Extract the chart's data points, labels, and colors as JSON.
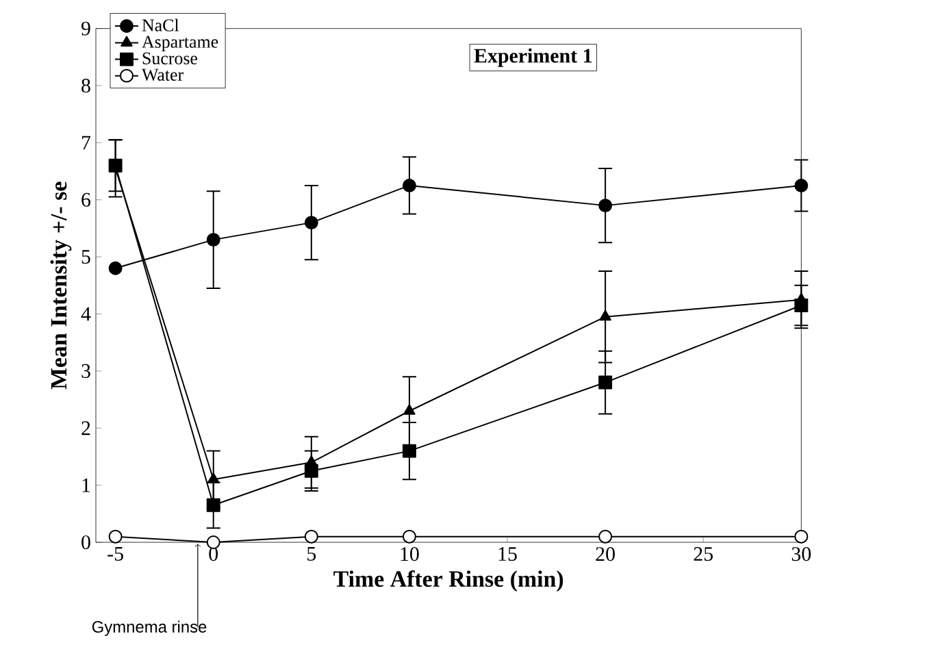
{
  "chart_data": {
    "type": "line",
    "title": "Experiment 1",
    "xlabel": "Time After Rinse (min)",
    "ylabel": "Mean Intensity +/- se",
    "x": [
      -5,
      0,
      5,
      10,
      20,
      30
    ],
    "series": [
      {
        "name": "NaCl",
        "color": "#000000",
        "marker": "circle",
        "values": [
          4.8,
          5.3,
          5.6,
          6.25,
          5.9,
          6.25
        ],
        "errors": [
          null,
          0.85,
          0.65,
          0.5,
          0.65,
          0.45
        ]
      },
      {
        "name": "Aspartame",
        "color": "#000000",
        "marker": "triangle",
        "values": [
          6.55,
          1.1,
          1.4,
          2.3,
          3.95,
          4.25
        ],
        "errors": [
          0.5,
          0.5,
          0.45,
          0.6,
          0.8,
          0.5
        ]
      },
      {
        "name": "Sucrose",
        "color": "#000000",
        "marker": "square",
        "values": [
          6.6,
          0.65,
          1.25,
          1.6,
          2.8,
          4.15
        ],
        "errors": [
          0.45,
          0.4,
          0.35,
          0.5,
          0.55,
          0.35
        ]
      },
      {
        "name": "Water",
        "color": "#ffffff",
        "marker": "circle",
        "values": [
          0.1,
          0,
          0.1,
          0.1,
          0.1,
          0.1
        ]
      }
    ],
    "xlim": [
      -6,
      30
    ],
    "xticks": [
      -5,
      0,
      5,
      10,
      15,
      20,
      25,
      30
    ],
    "ylim": [
      0,
      9
    ],
    "yticks": [
      0,
      1,
      2,
      3,
      4,
      5,
      6,
      7,
      8,
      9
    ],
    "annotations": [
      {
        "text": "Gymnema rinse",
        "x": -0.8,
        "y": 0
      }
    ],
    "legend": "top left",
    "grid": false,
    "line_style": "solid"
  }
}
